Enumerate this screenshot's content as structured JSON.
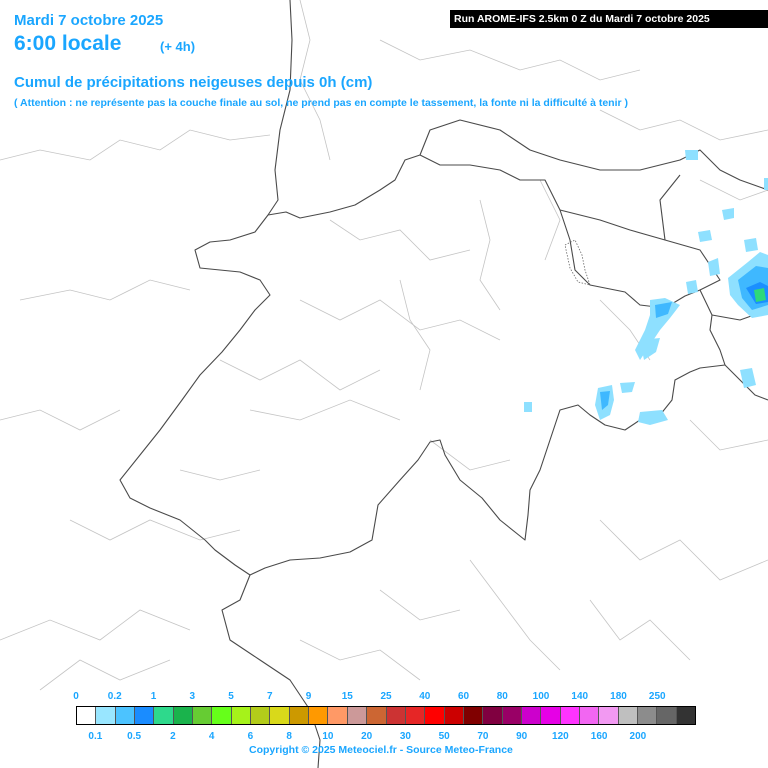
{
  "header": {
    "date": "Mardi 7 octobre 2025",
    "local_time": "6:00 locale",
    "forecast_offset": "(+ 4h)",
    "run_info": "Run AROME-IFS 2.5km 0 Z du Mardi 7 octobre 2025"
  },
  "map": {
    "title": "Cumul de précipitations neigeuses depuis 0h (cm)",
    "note": "( Attention : ne représente pas la couche finale au sol, ne prend pas en compte le tassement, la fonte ni la difficulté à tenir )",
    "region_shown": "Switzerland and surroundings",
    "snow_colors": [
      "#8ee0ff",
      "#3fb8ff",
      "#1a8fff",
      "#2ed97a"
    ]
  },
  "legend": {
    "unit": "cm",
    "top_labels": [
      "0",
      "0.2",
      "1",
      "3",
      "5",
      "7",
      "9",
      "15",
      "25",
      "40",
      "60",
      "80",
      "100",
      "140",
      "180",
      "250"
    ],
    "bottom_labels": [
      "0.1",
      "0.5",
      "2",
      "4",
      "6",
      "8",
      "10",
      "20",
      "30",
      "50",
      "70",
      "90",
      "120",
      "160",
      "200"
    ],
    "colors": [
      "#ffffff",
      "#99e6ff",
      "#4cc3ff",
      "#1a8cff",
      "#2ed98c",
      "#1ab34c",
      "#66cc33",
      "#66ff1a",
      "#a6f21a",
      "#b3cc1a",
      "#d9d91a",
      "#cc9900",
      "#ff9900",
      "#ff9966",
      "#cc9999",
      "#cc6633",
      "#cc3333",
      "#e62626",
      "#ff0000",
      "#cc0000",
      "#800000",
      "#800040",
      "#990066",
      "#cc00cc",
      "#e600e6",
      "#ff33ff",
      "#f266f2",
      "#f299f2",
      "#bfbfbf",
      "#8c8c8c",
      "#666666",
      "#333333"
    ]
  },
  "footer": {
    "copyright": "Copyright © 2025 Meteociel.fr - Source Meteo-France"
  }
}
